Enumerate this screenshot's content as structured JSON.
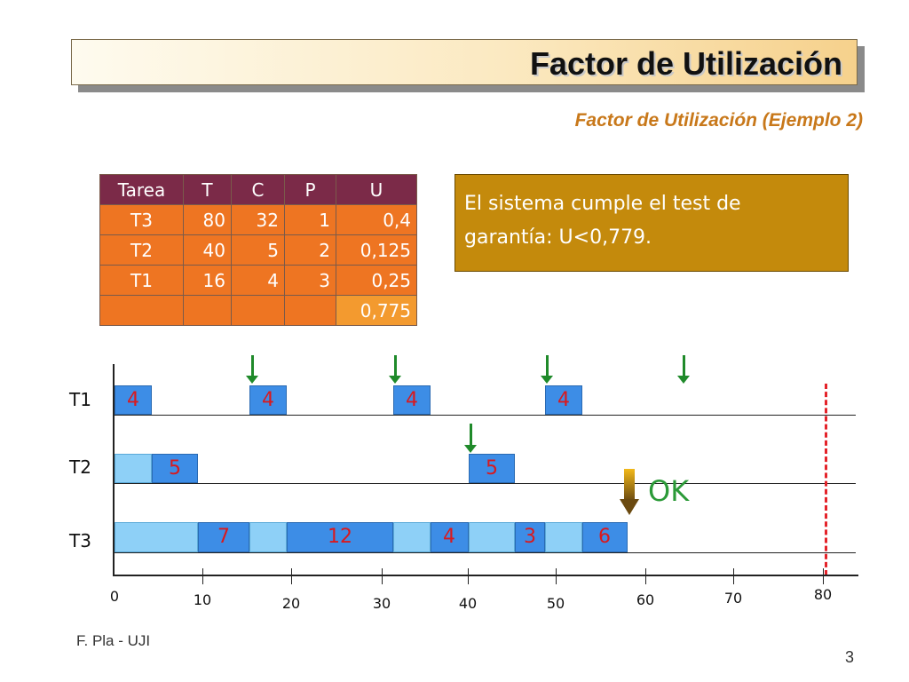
{
  "title": "Factor de Utilización",
  "subtitle": "Factor de Utilización (Ejemplo 2)",
  "table": {
    "headers": [
      "Tarea",
      "T",
      "C",
      "P",
      "U"
    ],
    "rows": [
      [
        "T3",
        "80",
        "32",
        "1",
        "0,4"
      ],
      [
        "T2",
        "40",
        "5",
        "2",
        "0,125"
      ],
      [
        "T1",
        "16",
        "4",
        "3",
        "0,25"
      ]
    ],
    "total": "0,775"
  },
  "note": {
    "line1": "El sistema cumple el test de",
    "line2": "garantía: U<0,779."
  },
  "gantt": {
    "row_labels": [
      "T1",
      "T2",
      "T3"
    ],
    "x_ticks": [
      "0",
      "10",
      "20",
      "30",
      "40",
      "50",
      "60",
      "70",
      "80"
    ],
    "t1_labels": [
      "4",
      "4",
      "4",
      "4"
    ],
    "t2_labels": [
      "5",
      "5"
    ],
    "t3_labels": [
      "7",
      "12",
      "4",
      "3",
      "6"
    ],
    "ok": "OK",
    "colors": {
      "dark_bar": "#3d8de6",
      "light_bar": "#8ed0f7",
      "label": "#d9191e",
      "arrival": "#1f8a2a",
      "deadline": "#e4232a"
    }
  },
  "footer": {
    "author": "F. Pla - UJI",
    "page": "3"
  }
}
